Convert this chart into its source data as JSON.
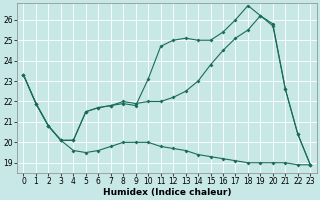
{
  "xlabel": "Humidex (Indice chaleur)",
  "ylabel": "",
  "background_color": "#c8e8e8",
  "line_color": "#1a6b5a",
  "xlim": [
    -0.5,
    23.5
  ],
  "ylim": [
    18.5,
    26.8
  ],
  "yticks": [
    19,
    20,
    21,
    22,
    23,
    24,
    25,
    26
  ],
  "xticks": [
    0,
    1,
    2,
    3,
    4,
    5,
    6,
    7,
    8,
    9,
    10,
    11,
    12,
    13,
    14,
    15,
    16,
    17,
    18,
    19,
    20,
    21,
    22,
    23
  ],
  "series1_y": [
    23.3,
    21.9,
    20.8,
    20.1,
    19.6,
    19.5,
    19.6,
    19.8,
    20.0,
    20.0,
    20.0,
    19.8,
    19.7,
    19.6,
    19.4,
    19.3,
    19.2,
    19.1,
    19.0,
    19.0,
    19.0,
    19.0,
    18.9,
    18.9
  ],
  "series2_y": [
    23.3,
    21.9,
    20.8,
    20.1,
    20.1,
    21.5,
    21.7,
    21.8,
    21.9,
    21.8,
    23.1,
    24.7,
    25.0,
    25.1,
    25.0,
    25.0,
    25.4,
    26.0,
    26.7,
    26.2,
    25.7,
    22.6,
    20.4,
    18.9
  ],
  "series3_y": [
    23.3,
    21.9,
    20.8,
    20.1,
    20.1,
    21.5,
    21.7,
    21.8,
    22.0,
    21.9,
    22.0,
    22.0,
    22.2,
    22.5,
    23.0,
    23.8,
    24.5,
    25.1,
    25.5,
    26.2,
    25.8,
    22.6,
    20.4,
    18.9
  ],
  "marker_size": 2.0,
  "line_width": 0.8,
  "xlabel_fontsize": 6.5,
  "tick_fontsize": 5.5,
  "grid_color": "#b0d0d0",
  "fig_width": 3.2,
  "fig_height": 2.0,
  "dpi": 100
}
